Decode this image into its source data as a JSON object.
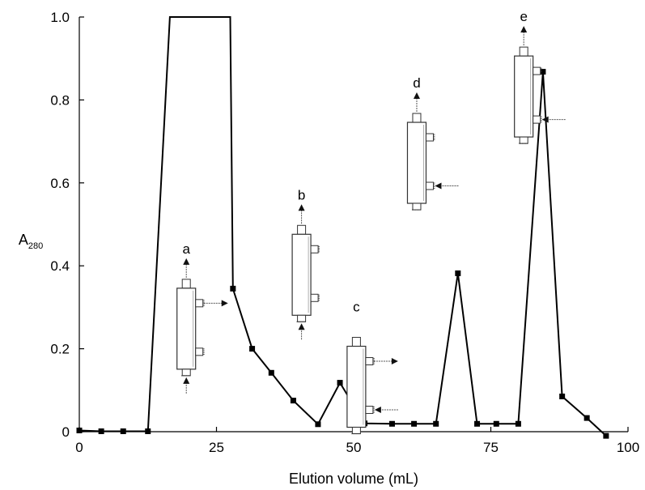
{
  "chart_data": {
    "type": "line",
    "title": "",
    "xlabel": "Elution volume (mL)",
    "ylabel": {
      "base": "A",
      "sub": "280"
    },
    "xlim": [
      0,
      100
    ],
    "ylim": [
      0,
      1.0
    ],
    "xticks": [
      0,
      25,
      50,
      75,
      100
    ],
    "yticks": [
      0,
      0.2,
      0.4,
      0.6,
      0.8,
      1.0
    ],
    "ytick_labels": [
      "0",
      "0.2",
      "0.4",
      "0.6",
      "0.8",
      "1.0"
    ],
    "grid": false,
    "series": [
      {
        "marker": "square",
        "color": "#000000",
        "points": [
          {
            "x": 0,
            "y": 0.003,
            "marker": true
          },
          {
            "x": 4,
            "y": 0.001,
            "marker": true
          },
          {
            "x": 8,
            "y": 0.001,
            "marker": true
          },
          {
            "x": 12.5,
            "y": 0.001,
            "marker": true
          },
          {
            "x": 16.5,
            "y": 1.0,
            "marker": false
          },
          {
            "x": 27.5,
            "y": 1.0,
            "marker": false
          },
          {
            "x": 28.0,
            "y": 0.345,
            "marker": true
          },
          {
            "x": 31.5,
            "y": 0.2,
            "marker": true
          },
          {
            "x": 35.0,
            "y": 0.142,
            "marker": true
          },
          {
            "x": 39.0,
            "y": 0.075,
            "marker": true
          },
          {
            "x": 43.5,
            "y": 0.018,
            "marker": true
          },
          {
            "x": 47.5,
            "y": 0.118,
            "marker": true
          },
          {
            "x": 52.0,
            "y": 0.02,
            "marker": true
          },
          {
            "x": 57.0,
            "y": 0.019,
            "marker": true
          },
          {
            "x": 61.0,
            "y": 0.019,
            "marker": true
          },
          {
            "x": 65.0,
            "y": 0.019,
            "marker": true
          },
          {
            "x": 69.0,
            "y": 0.382,
            "marker": true
          },
          {
            "x": 72.5,
            "y": 0.019,
            "marker": true
          },
          {
            "x": 76.0,
            "y": 0.019,
            "marker": true
          },
          {
            "x": 80.0,
            "y": 0.019,
            "marker": true
          },
          {
            "x": 84.5,
            "y": 0.868,
            "marker": true
          },
          {
            "x": 88.0,
            "y": 0.085,
            "marker": true
          },
          {
            "x": 92.5,
            "y": 0.033,
            "marker": true
          },
          {
            "x": 96.0,
            "y": -0.01,
            "marker": true
          }
        ]
      }
    ],
    "annotations": [
      {
        "label": "a",
        "x": 19.5,
        "y": 0.43,
        "arrows": {
          "top": "out",
          "bottom": "in",
          "upper_side": "out",
          "lower_side": "none"
        }
      },
      {
        "label": "b",
        "x": 40.5,
        "y": 0.56,
        "arrows": {
          "top": "out",
          "bottom": "in",
          "upper_side": "none",
          "lower_side": "none"
        }
      },
      {
        "label": "c",
        "x": 50.5,
        "y": 0.29,
        "arrows": {
          "top": "none",
          "bottom": "none",
          "upper_side": "out",
          "lower_side": "in"
        }
      },
      {
        "label": "d",
        "x": 61.5,
        "y": 0.83,
        "arrows": {
          "top": "out",
          "bottom": "none",
          "upper_side": "none",
          "lower_side": "in"
        }
      },
      {
        "label": "e",
        "x": 81.0,
        "y": 0.99,
        "arrows": {
          "top": "out",
          "bottom": "none",
          "upper_side": "none",
          "lower_side": "in"
        }
      }
    ]
  }
}
